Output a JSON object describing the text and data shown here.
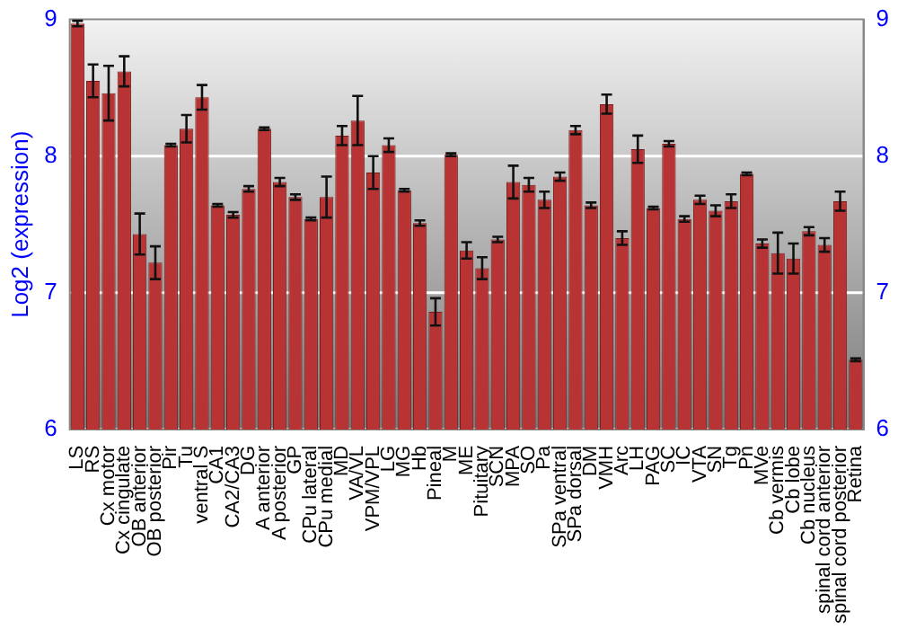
{
  "chart_data": {
    "type": "bar",
    "ylabel": "Log2 (expression)",
    "categories": [
      "LS",
      "RS",
      "Cx motor",
      "Cx cingulate",
      "OB anterior",
      "OB posterior",
      "Pir",
      "Tu",
      "ventral S",
      "CA1",
      "CA2/CA3",
      "DG",
      "A anterior",
      "A posterior",
      "GP",
      "CPu lateral",
      "CPu medial",
      "MD",
      "VA/VL",
      "VPM/VPL",
      "LG",
      "MG",
      "Hb",
      "Pineal",
      "M",
      "ME",
      "Pituitary",
      "SCN",
      "MPA",
      "SO",
      "Pa",
      "SPa ventral",
      "SPa dorsal",
      "DM",
      "VMH",
      "Arc",
      "LH",
      "PAG",
      "SC",
      "IC",
      "VTA",
      "SN",
      "Tg",
      "Pn",
      "MVe",
      "Cb vermis",
      "Cb lobe",
      "Cb nucleus",
      "spinal cord anterior",
      "spinal cord posterior",
      "Retina"
    ],
    "values": [
      8.97,
      8.55,
      8.46,
      8.62,
      7.43,
      7.22,
      8.08,
      8.2,
      8.43,
      7.64,
      7.57,
      7.76,
      8.2,
      7.81,
      7.7,
      7.54,
      7.7,
      8.15,
      8.26,
      7.88,
      8.08,
      7.75,
      7.51,
      6.86,
      8.01,
      7.31,
      7.18,
      7.39,
      7.81,
      7.79,
      7.68,
      7.85,
      8.19,
      7.64,
      8.38,
      7.4,
      8.05,
      7.62,
      8.09,
      7.54,
      7.68,
      7.6,
      7.67,
      7.87,
      7.36,
      7.29,
      7.25,
      7.45,
      7.35,
      7.67,
      6.51
    ],
    "errors": [
      0.02,
      0.12,
      0.2,
      0.11,
      0.15,
      0.12,
      0.01,
      0.1,
      0.09,
      0.01,
      0.02,
      0.02,
      0.01,
      0.03,
      0.02,
      0.01,
      0.15,
      0.07,
      0.18,
      0.12,
      0.05,
      0.01,
      0.02,
      0.1,
      0.01,
      0.06,
      0.08,
      0.02,
      0.12,
      0.05,
      0.06,
      0.03,
      0.03,
      0.02,
      0.07,
      0.05,
      0.1,
      0.01,
      0.02,
      0.02,
      0.03,
      0.04,
      0.05,
      0.01,
      0.03,
      0.15,
      0.11,
      0.03,
      0.05,
      0.07,
      0.01
    ],
    "color": "#b83434",
    "ylim": [
      6,
      9
    ],
    "yticks": [
      6,
      7,
      8,
      9
    ],
    "y2lim": [
      6,
      9
    ],
    "y2ticks": [
      6,
      7,
      8,
      9
    ],
    "grid": "y",
    "legend": false
  }
}
